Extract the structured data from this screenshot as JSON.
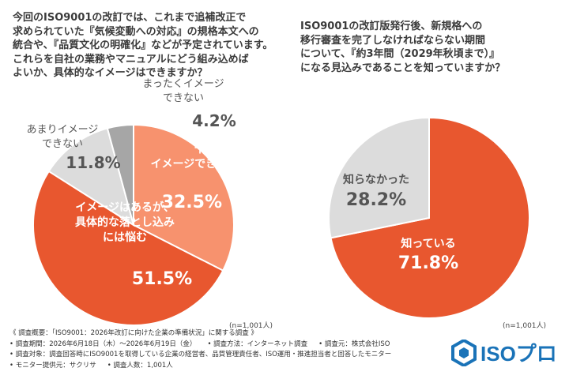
{
  "left_question": [
    "今回のISO9001の改訂では、これまで追補改正で",
    "求められていた『気候変動への対応』の規格本文への",
    "統合や、『品質文化の明確化』などが予定されています。",
    "これらを自社の業務やマニュアルにどう組み込めば",
    "よいか、具体的なイメージはできますか？"
  ],
  "right_question": [
    "ISO9001の改訂版発行後、新規格への",
    "移行審査を完了しなければならない期間",
    "について、『約3年間（2029年秋頃まで）』",
    "になる見込みであることを知っていますか？"
  ],
  "chart_data": [
    {
      "type": "pie",
      "title": "",
      "note": "(n=1,001人)",
      "slices": [
        {
          "label": [
            "十分に",
            "イメージできる"
          ],
          "value": 32.5,
          "display": "32.5%",
          "color": "#f7926e",
          "text_color": "#ffffff"
        },
        {
          "label": [
            "イメージはあるが、",
            "具体的な落とし込み",
            "には悩む"
          ],
          "value": 51.5,
          "display": "51.5%",
          "color": "#e8572f",
          "text_color": "#ffffff"
        },
        {
          "label": [
            "あまりイメージ",
            "できない"
          ],
          "value": 11.8,
          "display": "11.8%",
          "color": "#dcdcdc",
          "text_color": "#555555"
        },
        {
          "label": [
            "まったくイメージ",
            "できない"
          ],
          "value": 4.2,
          "display": "4.2%",
          "color": "#a6a6a6",
          "text_color": "#555555"
        }
      ]
    },
    {
      "type": "pie",
      "title": "",
      "note": "(n=1,001人)",
      "slices": [
        {
          "label": [
            "知っている"
          ],
          "value": 71.8,
          "display": "71.8%",
          "color": "#e8572f",
          "text_color": "#ffffff"
        },
        {
          "label": [
            "知らなかった"
          ],
          "value": 28.2,
          "display": "28.2%",
          "color": "#dcdcdc",
          "text_color": "#555555"
        }
      ]
    }
  ],
  "footer": {
    "rows": [
      [
        "《 調査概要：「ISO9001：2026年改訂に向けた企業の準備状況」に関する調査 》"
      ],
      [
        "• 調査期間：2026年6月18日（木）〜2026年6月19日（金）",
        "• 調査方法：インターネット調査",
        "• 調査元：株式会社ISO"
      ],
      [
        "• 調査対象：調査回答時にISO9001を取得している企業の経営者、品質管理責任者、ISO運用・推進担当者と回答したモニター"
      ],
      [
        "• モニター提供元：サクリサ",
        "• 調査人数：1,001人"
      ]
    ]
  },
  "logo": {
    "text": "ISOプロ",
    "color": "#1a73b8"
  }
}
